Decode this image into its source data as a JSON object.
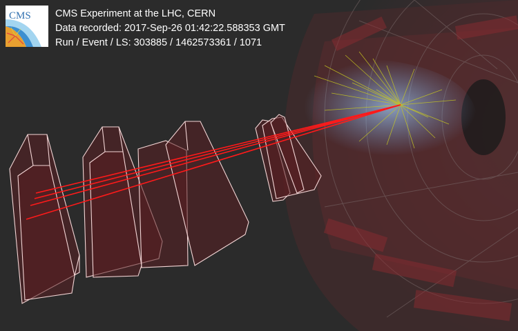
{
  "header": {
    "logo_text": "CMS",
    "line1": "CMS Experiment at the LHC, CERN",
    "line2": "Data recorded: 2017-Sep-26 01:42:22.588353 GMT",
    "line3": "Run / Event / LS: 303885 / 1462573361 / 1071"
  },
  "colors": {
    "background": "#2b2b2b",
    "muon_chamber_fill": "#5a1f22",
    "muon_chamber_edge": "#f4d6d6",
    "muon_track": "#ff1a1a",
    "jet_tracks": "#c8c820",
    "tracker_glow": "#6fa0d8"
  }
}
